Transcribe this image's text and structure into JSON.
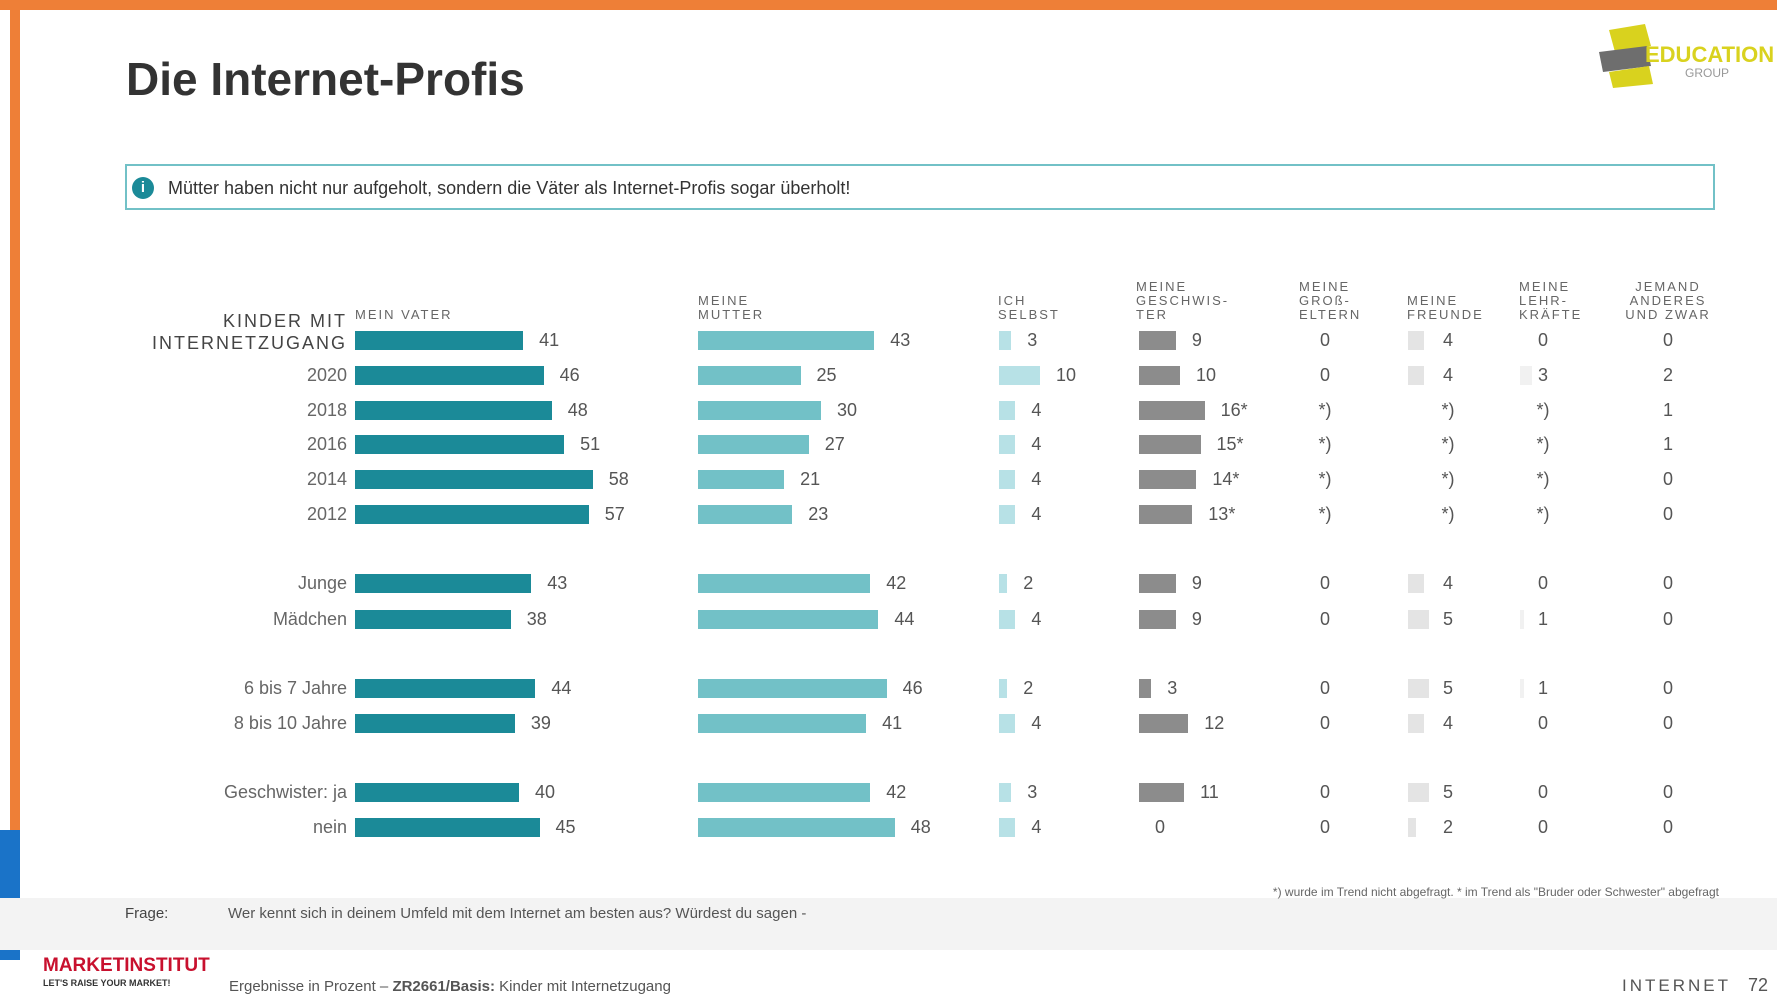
{
  "title": "Die Internet-Profis",
  "logo": "EDUCATION",
  "logo_sub": "GROUP",
  "info": "Mütter haben nicht nur aufgeholt, sondern die Väter als Internet-Profis sogar überholt!",
  "chart_data": [
    {
      "type": "bar",
      "title": "MEIN VATER",
      "color": "#1b8a98",
      "categories": [
        "KINDER MIT\nINTERNETZUGANG",
        "2020",
        "2018",
        "2016",
        "2014",
        "2012",
        "Junge",
        "Mädchen",
        "6 bis 7 Jahre",
        "8 bis 10 Jahre",
        "Geschwister: ja",
        "nein"
      ],
      "values": [
        41,
        46,
        48,
        51,
        58,
        57,
        43,
        38,
        44,
        39,
        40,
        45
      ]
    },
    {
      "type": "bar",
      "title": "MEINE\nMUTTER",
      "color": "#72c1c7",
      "values": [
        43,
        25,
        30,
        27,
        21,
        23,
        42,
        44,
        46,
        41,
        42,
        48
      ]
    },
    {
      "type": "bar",
      "title": "ICH\nSELBST",
      "color": "#b7e1e6",
      "values": [
        3,
        10,
        4,
        4,
        4,
        4,
        2,
        4,
        2,
        4,
        3,
        4
      ]
    },
    {
      "type": "bar",
      "title": "MEINE\nGESCHWIS-\nTER",
      "color": "#8c8c8c",
      "values": [
        9,
        10,
        16,
        15,
        14,
        13,
        9,
        9,
        3,
        12,
        11,
        0
      ],
      "value_labels": [
        "9",
        "10",
        "16*",
        "15*",
        "14*",
        "13*",
        "9",
        "9",
        "3",
        "12",
        "11",
        "0"
      ]
    },
    {
      "type": "bar",
      "title": "MEINE\nGROß-\nELTERN",
      "values": [
        0,
        0,
        null,
        null,
        null,
        null,
        0,
        0,
        0,
        0,
        0,
        0
      ],
      "value_labels": [
        "0",
        "0",
        "*)",
        "*)",
        "*)",
        "*)",
        "0",
        "0",
        "0",
        "0",
        "0",
        "0"
      ]
    },
    {
      "type": "bar",
      "title": "MEINE\nFREUNDE",
      "color": "#e4e4e4",
      "values": [
        4,
        4,
        null,
        null,
        null,
        null,
        4,
        5,
        5,
        4,
        5,
        2
      ],
      "value_labels": [
        "4",
        "4",
        "*)",
        "*)",
        "*)",
        "*)",
        "4",
        "5",
        "5",
        "4",
        "5",
        "2"
      ]
    },
    {
      "type": "bar",
      "title": "MEINE\nLEHR-\nKRÄFTE",
      "color": "#f1f1f1",
      "values": [
        0,
        3,
        null,
        null,
        null,
        null,
        0,
        1,
        1,
        0,
        0,
        0
      ],
      "value_labels": [
        "0",
        "3",
        "*)",
        "*)",
        "*)",
        "*)",
        "0",
        "1",
        "1",
        "0",
        "0",
        "0"
      ]
    },
    {
      "type": "bar",
      "title": "JEMAND\nANDERES\nUND ZWAR",
      "values": [
        0,
        2,
        1,
        1,
        0,
        0,
        0,
        0,
        0,
        0,
        0,
        0
      ]
    }
  ],
  "note": "*) wurde im Trend nicht abgefragt. * im Trend als \"Bruder oder Schwester\" abgefragt",
  "question_label": "Frage:",
  "question": "Wer kennt sich in deinem Umfeld mit dem Internet am besten aus? Würdest du sagen -",
  "brand": "MARKETINSTITUT",
  "brand_slogan": "LET'S RAISE YOUR MARKET!",
  "results_prefix": "Ergebnisse in Prozent – ",
  "results_bold": "ZR2661/Basis:",
  "results_rest": " Kinder mit Internetzugang",
  "section": "INTERNET",
  "page": "72"
}
